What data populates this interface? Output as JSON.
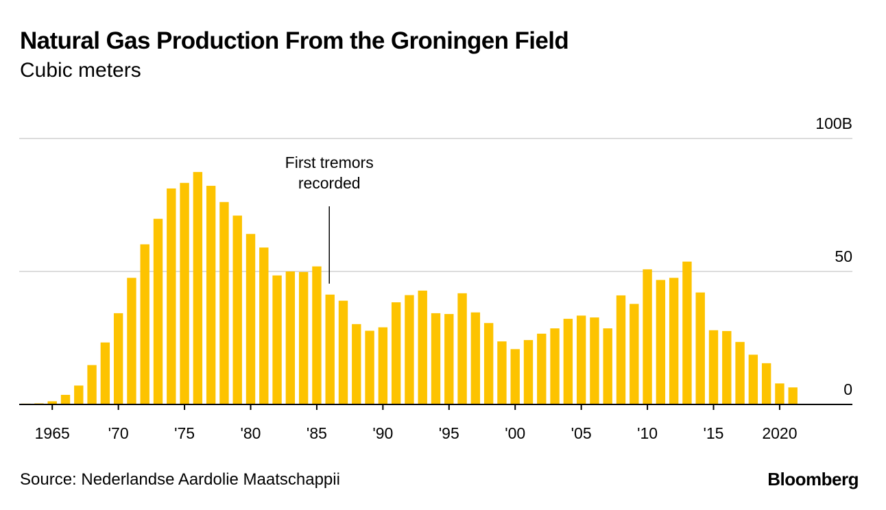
{
  "header": {
    "title": "Natural Gas Production From the Groningen Field",
    "subtitle": "Cubic meters"
  },
  "footer": {
    "source": "Source: Nederlandse Aardolie Maatschappii",
    "brand": "Bloomberg"
  },
  "colors": {
    "bar": "#FDC300",
    "grid": "#dcdcdc",
    "axis": "#000000"
  },
  "chart_data": {
    "type": "bar",
    "title": "Natural Gas Production From the Groningen Field",
    "subtitle": "Cubic meters",
    "xlabel": "",
    "ylabel": "",
    "ylim": [
      0,
      100
    ],
    "xlim": [
      1962.5,
      2025.5
    ],
    "grid": true,
    "y_ticks": [
      {
        "value": 0,
        "label": "0"
      },
      {
        "value": 50,
        "label": "50"
      },
      {
        "value": 100,
        "label": "100B"
      }
    ],
    "x_ticks": [
      {
        "value": 1965,
        "label": "1965"
      },
      {
        "value": 1970,
        "label": "'70"
      },
      {
        "value": 1975,
        "label": "'75"
      },
      {
        "value": 1980,
        "label": "'80"
      },
      {
        "value": 1985,
        "label": "'85"
      },
      {
        "value": 1990,
        "label": "'90"
      },
      {
        "value": 1995,
        "label": "'95"
      },
      {
        "value": 2000,
        "label": "'00"
      },
      {
        "value": 2005,
        "label": "'05"
      },
      {
        "value": 2010,
        "label": "'10"
      },
      {
        "value": 2015,
        "label": "'15"
      },
      {
        "value": 2020,
        "label": "2020"
      }
    ],
    "categories": [
      1963,
      1964,
      1965,
      1966,
      1967,
      1968,
      1969,
      1970,
      1971,
      1972,
      1973,
      1974,
      1975,
      1976,
      1977,
      1978,
      1979,
      1980,
      1981,
      1982,
      1983,
      1984,
      1985,
      1986,
      1987,
      1988,
      1989,
      1990,
      1991,
      1992,
      1993,
      1994,
      1995,
      1996,
      1997,
      1998,
      1999,
      2000,
      2001,
      2002,
      2003,
      2004,
      2005,
      2006,
      2007,
      2008,
      2009,
      2010,
      2011,
      2012,
      2013,
      2014,
      2015,
      2016,
      2017,
      2018,
      2019,
      2020,
      2021
    ],
    "values": [
      0.3,
      0.4,
      1.2,
      3.6,
      7.1,
      14.8,
      23.3,
      34.3,
      47.6,
      60.2,
      69.8,
      81.2,
      83.3,
      87.4,
      82.2,
      76.1,
      71.0,
      64.1,
      59.0,
      48.5,
      50.0,
      49.8,
      51.9,
      41.3,
      39.0,
      30.2,
      27.7,
      29.0,
      38.4,
      41.1,
      42.8,
      34.3,
      34.0,
      41.8,
      34.6,
      30.6,
      23.7,
      20.8,
      24.2,
      26.6,
      28.6,
      32.2,
      33.4,
      32.7,
      28.6,
      41.0,
      37.8,
      50.8,
      46.8,
      47.6,
      53.7,
      42.1,
      27.9,
      27.6,
      23.5,
      18.7,
      15.5,
      7.9,
      6.4
    ],
    "annotations": [
      {
        "x": 1986,
        "lines": [
          "First tremors",
          "recorded"
        ]
      }
    ]
  }
}
